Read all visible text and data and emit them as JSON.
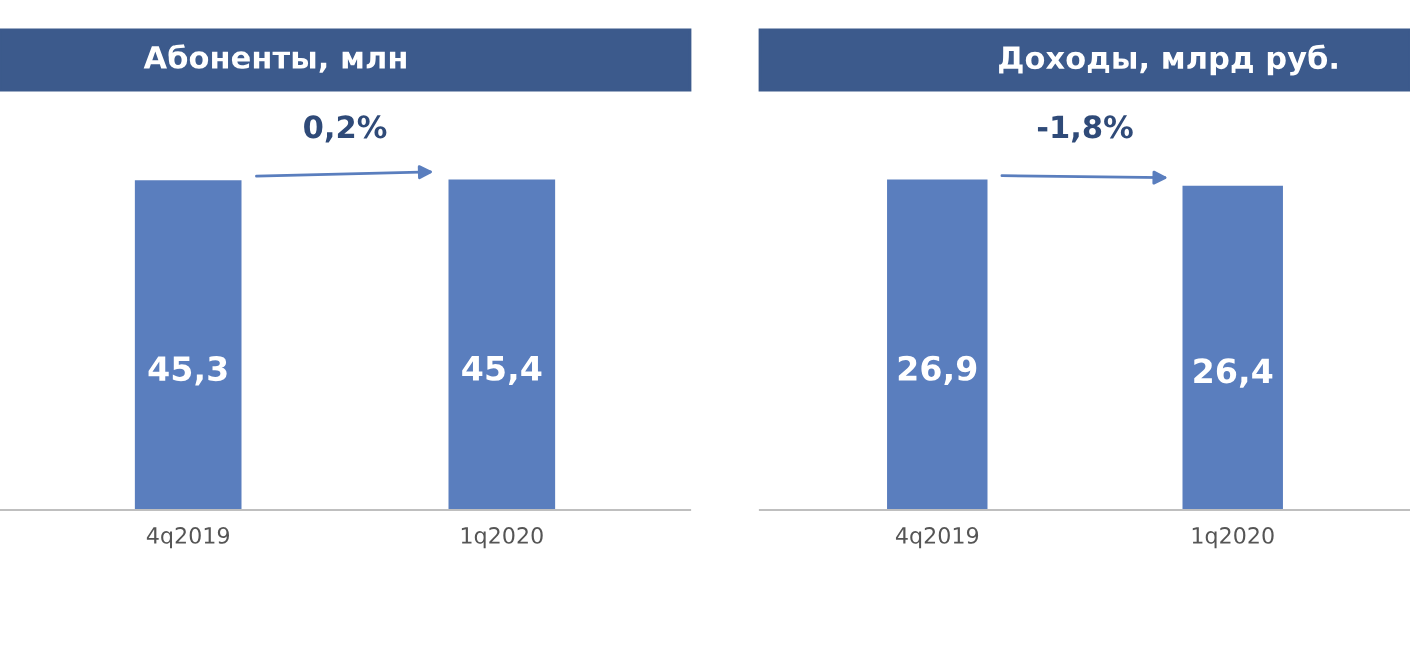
{
  "chart_data": [
    {
      "type": "bar",
      "title": "Абоненты, млн",
      "categories": [
        "4q2019",
        "1q2020"
      ],
      "values": [
        45.3,
        45.4
      ],
      "value_labels": [
        "45,3",
        "45,4"
      ],
      "color": "#5a7ebe",
      "annotations": [
        "0,2%"
      ]
    },
    {
      "type": "bar",
      "title": "Доходы, млрд руб.",
      "categories": [
        "4q2019",
        "1q2020"
      ],
      "values": [
        26.9,
        26.4
      ],
      "value_labels": [
        "26,9",
        "26,4"
      ],
      "color": "#5a7ebe",
      "annotations": [
        "-1,8%"
      ]
    }
  ]
}
